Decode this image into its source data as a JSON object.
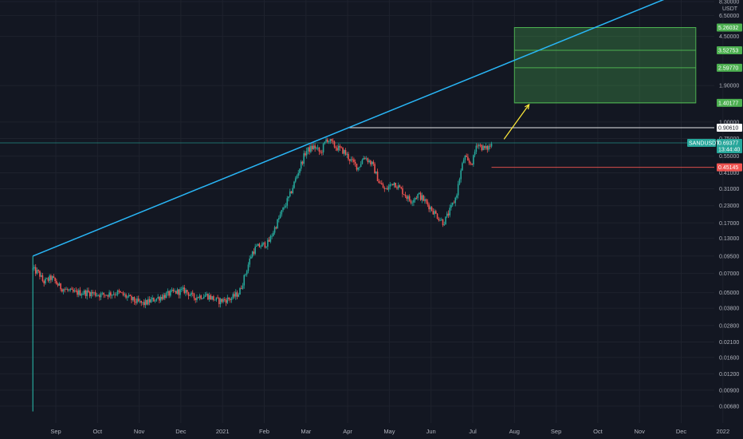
{
  "chart_data": {
    "type": "candlestick",
    "symbol": "SANDUSDT",
    "quote_currency": "USDT",
    "y_scale": "log",
    "ylim": [
      0.0052,
      8.3
    ],
    "y_ticks": [
      "0.00680",
      "0.00900",
      "0.01200",
      "0.01600",
      "0.02100",
      "0.02800",
      "0.03800",
      "0.05000",
      "0.07000",
      "0.09500",
      "0.13000",
      "0.17000",
      "0.23000",
      "0.31000",
      "0.41000",
      "0.55000",
      "0.75000",
      "1.00000",
      "1.90000",
      "4.50000",
      "6.50000",
      "8.30000"
    ],
    "y_tick_values": [
      0.0068,
      0.009,
      0.012,
      0.016,
      0.021,
      0.028,
      0.038,
      0.05,
      0.07,
      0.095,
      0.13,
      0.17,
      0.23,
      0.31,
      0.41,
      0.55,
      0.75,
      1.0,
      1.9,
      4.5,
      6.5,
      8.3
    ],
    "x_ticks": [
      {
        "label": "Sep",
        "month_index": 0
      },
      {
        "label": "Oct",
        "month_index": 1
      },
      {
        "label": "Nov",
        "month_index": 2
      },
      {
        "label": "Dec",
        "month_index": 3
      },
      {
        "label": "2021",
        "month_index": 4
      },
      {
        "label": "Feb",
        "month_index": 5
      },
      {
        "label": "Mar",
        "month_index": 6
      },
      {
        "label": "Apr",
        "month_index": 7
      },
      {
        "label": "May",
        "month_index": 8
      },
      {
        "label": "Jun",
        "month_index": 9
      },
      {
        "label": "Jul",
        "month_index": 10
      },
      {
        "label": "Aug",
        "month_index": 11
      },
      {
        "label": "Sep",
        "month_index": 12
      },
      {
        "label": "Oct",
        "month_index": 13
      },
      {
        "label": "Nov",
        "month_index": 14
      },
      {
        "label": "Dec",
        "month_index": 15
      },
      {
        "label": "2022",
        "month_index": 16
      }
    ],
    "price_anchors": [
      [
        -0.55,
        0.075
      ],
      [
        -0.4,
        0.07
      ],
      [
        -0.3,
        0.06
      ],
      [
        -0.1,
        0.065
      ],
      [
        0.1,
        0.055
      ],
      [
        0.4,
        0.05
      ],
      [
        0.8,
        0.05
      ],
      [
        1.1,
        0.048
      ],
      [
        1.5,
        0.05
      ],
      [
        1.9,
        0.043
      ],
      [
        2.1,
        0.041
      ],
      [
        2.4,
        0.045
      ],
      [
        2.8,
        0.05
      ],
      [
        3.1,
        0.052
      ],
      [
        3.3,
        0.046
      ],
      [
        3.6,
        0.048
      ],
      [
        3.9,
        0.043
      ],
      [
        4.2,
        0.045
      ],
      [
        4.4,
        0.05
      ],
      [
        4.55,
        0.07
      ],
      [
        4.7,
        0.1
      ],
      [
        4.8,
        0.11
      ],
      [
        5.1,
        0.12
      ],
      [
        5.4,
        0.2
      ],
      [
        5.6,
        0.27
      ],
      [
        5.85,
        0.45
      ],
      [
        6.0,
        0.6
      ],
      [
        6.2,
        0.65
      ],
      [
        6.35,
        0.58
      ],
      [
        6.5,
        0.75
      ],
      [
        6.7,
        0.65
      ],
      [
        6.9,
        0.6
      ],
      [
        7.1,
        0.5
      ],
      [
        7.25,
        0.45
      ],
      [
        7.4,
        0.55
      ],
      [
        7.6,
        0.47
      ],
      [
        7.75,
        0.35
      ],
      [
        7.9,
        0.3
      ],
      [
        8.1,
        0.35
      ],
      [
        8.3,
        0.3
      ],
      [
        8.5,
        0.25
      ],
      [
        8.7,
        0.28
      ],
      [
        8.9,
        0.24
      ],
      [
        9.1,
        0.2
      ],
      [
        9.3,
        0.17
      ],
      [
        9.45,
        0.21
      ],
      [
        9.6,
        0.27
      ],
      [
        9.7,
        0.4
      ],
      [
        9.8,
        0.55
      ],
      [
        9.9,
        0.48
      ],
      [
        10.0,
        0.5
      ],
      [
        10.1,
        0.7
      ],
      [
        10.2,
        0.65
      ],
      [
        10.3,
        0.62
      ],
      [
        10.4,
        0.65
      ],
      [
        10.48,
        0.69377
      ]
    ],
    "lines": [
      {
        "name": "resistance",
        "value": 0.9061,
        "color": "#ffffff"
      },
      {
        "name": "current",
        "value": 0.69377,
        "color": "#26a69a"
      },
      {
        "name": "support",
        "value": 0.45145,
        "color": "#ef5350"
      }
    ],
    "trendline": {
      "color": "#29b6f6",
      "from": {
        "t": -0.55,
        "value": 0.095
      },
      "to": {
        "t": 7.0,
        "value": 0.9
      }
    },
    "target_zone": {
      "t_start": 11.0,
      "t_end": 15.35,
      "low": 1.40177,
      "high": 5.26032,
      "color": "#4caf50"
    },
    "target_levels": [
      5.26032,
      3.52753,
      2.5977,
      1.40177
    ],
    "projection_arrow": {
      "color": "#ffeb3b",
      "from": {
        "t": 10.75,
        "value": 0.74
      },
      "to": {
        "t": 11.35,
        "value": 1.36
      }
    },
    "colors": {
      "up": "#26a69a",
      "down": "#ef5350",
      "background": "#131722",
      "grid": "#1e222d"
    }
  },
  "price_tags": [
    {
      "id": "t1",
      "label": "5.26032",
      "value": 5.26032,
      "bg": "#4caf50",
      "fg": "#ffffff"
    },
    {
      "id": "t2",
      "label": "3.52753",
      "value": 3.52753,
      "bg": "#4caf50",
      "fg": "#ffffff"
    },
    {
      "id": "t3",
      "label": "2.59770",
      "value": 2.5977,
      "bg": "#4caf50",
      "fg": "#ffffff"
    },
    {
      "id": "t4",
      "label": "1.40177",
      "value": 1.40177,
      "bg": "#4caf50",
      "fg": "#ffffff"
    },
    {
      "id": "t5",
      "label": "0.90610",
      "value": 0.9061,
      "bg": "#ffffff",
      "fg": "#131722"
    },
    {
      "id": "t6",
      "label": "0.69377",
      "value": 0.69377,
      "bg": "#26a69a",
      "fg": "#ffffff",
      "sub": "13:44:40"
    },
    {
      "id": "t7",
      "label": "0.45145",
      "value": 0.45145,
      "bg": "#ef5350",
      "fg": "#ffffff"
    }
  ],
  "symbol_tag": {
    "label": "SANDUSDT",
    "bg": "#26a69a",
    "fg": "#ffffff"
  }
}
